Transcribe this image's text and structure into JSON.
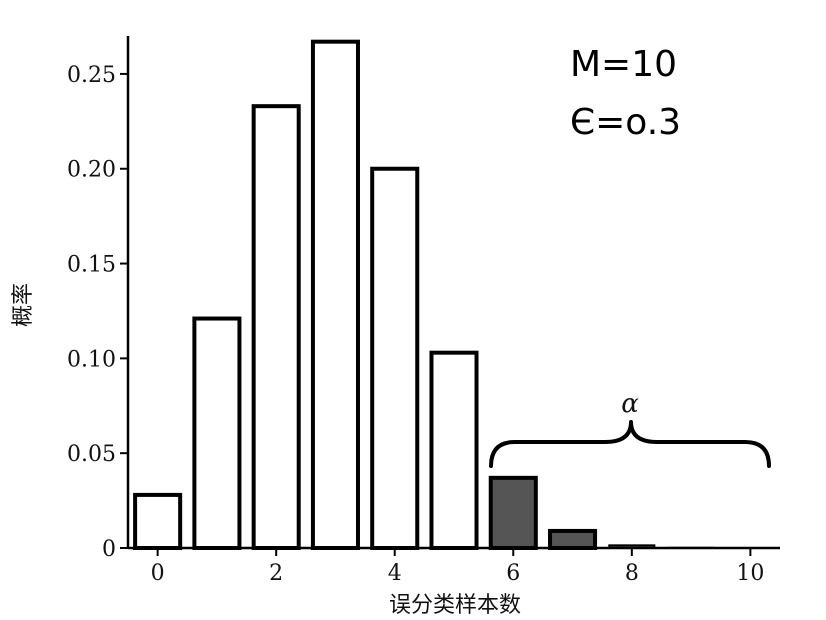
{
  "chart_data": {
    "type": "bar",
    "x": [
      0,
      1,
      2,
      3,
      4,
      5,
      6,
      7,
      8,
      9,
      10
    ],
    "values": [
      0.028,
      0.121,
      0.233,
      0.267,
      0.2,
      0.103,
      0.037,
      0.009,
      0.0014,
      0.0001,
      0.0
    ],
    "highlight_from": 6,
    "xlabel": "误分类样本数",
    "ylabel": "概率",
    "xlim": [
      -0.5,
      10.5
    ],
    "ylim": [
      0,
      0.27
    ],
    "xticks": [
      "0",
      "2",
      "4",
      "6",
      "8",
      "10"
    ],
    "xtick_values": [
      0,
      2,
      4,
      6,
      8,
      10
    ],
    "yticks": [
      "0",
      "0.05",
      "0.10",
      "0.15",
      "0.20",
      "0.25"
    ],
    "ytick_values": [
      0,
      0.05,
      0.1,
      0.15,
      0.2,
      0.25
    ],
    "annotations": {
      "line1": "M=10",
      "line2": "Є=o.3",
      "brace_label": "α"
    },
    "grid": false,
    "colors": {
      "bar_fill": "#ffffff",
      "bar_stroke": "#000000",
      "tail_fill": "#555555"
    }
  }
}
